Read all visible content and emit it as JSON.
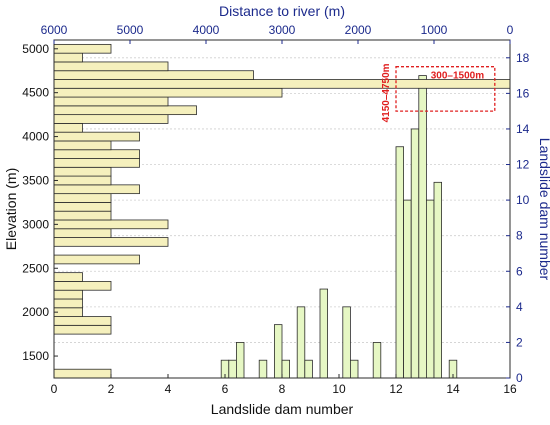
{
  "chart_data": {
    "type": "bar",
    "xlabel_bottom": "Landslide dam number",
    "xlabel_top": "Distance to river (m)",
    "ylabel_left": "Elevation (m)",
    "ylabel_right": "Landslide dam number",
    "x_bottom_range": [
      0,
      16
    ],
    "x_bottom_ticks": [
      "0",
      "2",
      "4",
      "6",
      "8",
      "10",
      "12",
      "14",
      "16"
    ],
    "x_top_range": [
      6000,
      0
    ],
    "x_top_ticks": [
      "6000",
      "5000",
      "4000",
      "3000",
      "2000",
      "1000",
      "0"
    ],
    "y_left_range": [
      1250,
      5100
    ],
    "y_left_ticks": [
      "1500",
      "2000",
      "2500",
      "3000",
      "3500",
      "4000",
      "4500",
      "5000"
    ],
    "y_right_range": [
      0,
      19
    ],
    "y_right_ticks": [
      "0",
      "2",
      "4",
      "6",
      "8",
      "10",
      "12",
      "14",
      "16",
      "18"
    ],
    "colors": {
      "bar_fill": "#f5f0bd",
      "bar_stroke": "#2b2b2b",
      "axis_right": "#1c2a8c",
      "axis_top": "#1c2a8c",
      "highlight": "#e02020",
      "grid": "#cfcfcf"
    },
    "grid": true,
    "elevation_series": {
      "bin_width_m": 100,
      "bins": [
        {
          "elevation": 1300,
          "count": 2
        },
        {
          "elevation": 1800,
          "count": 2
        },
        {
          "elevation": 1900,
          "count": 2
        },
        {
          "elevation": 2000,
          "count": 1
        },
        {
          "elevation": 2100,
          "count": 1
        },
        {
          "elevation": 2200,
          "count": 1
        },
        {
          "elevation": 2300,
          "count": 2
        },
        {
          "elevation": 2400,
          "count": 1
        },
        {
          "elevation": 2600,
          "count": 3
        },
        {
          "elevation": 2800,
          "count": 4
        },
        {
          "elevation": 2900,
          "count": 2
        },
        {
          "elevation": 3000,
          "count": 4
        },
        {
          "elevation": 3100,
          "count": 2
        },
        {
          "elevation": 3200,
          "count": 2
        },
        {
          "elevation": 3300,
          "count": 2
        },
        {
          "elevation": 3400,
          "count": 3
        },
        {
          "elevation": 3500,
          "count": 2
        },
        {
          "elevation": 3600,
          "count": 2
        },
        {
          "elevation": 3700,
          "count": 3
        },
        {
          "elevation": 3800,
          "count": 3
        },
        {
          "elevation": 3900,
          "count": 2
        },
        {
          "elevation": 4000,
          "count": 3
        },
        {
          "elevation": 4100,
          "count": 1
        },
        {
          "elevation": 4200,
          "count": 4
        },
        {
          "elevation": 4300,
          "count": 5
        },
        {
          "elevation": 4400,
          "count": 4
        },
        {
          "elevation": 4500,
          "count": 8
        },
        {
          "elevation": 4600,
          "count": 16
        },
        {
          "elevation": 4700,
          "count": 7
        },
        {
          "elevation": 4800,
          "count": 4
        },
        {
          "elevation": 4900,
          "count": 1
        },
        {
          "elevation": 5000,
          "count": 2
        }
      ]
    },
    "distance_series": {
      "bin_width_m": 100,
      "bins": [
        {
          "distance": 3800,
          "count": 1
        },
        {
          "distance": 3700,
          "count": 1
        },
        {
          "distance": 3600,
          "count": 2
        },
        {
          "distance": 3300,
          "count": 1
        },
        {
          "distance": 3100,
          "count": 3
        },
        {
          "distance": 3000,
          "count": 1
        },
        {
          "distance": 2800,
          "count": 4
        },
        {
          "distance": 2700,
          "count": 1
        },
        {
          "distance": 2500,
          "count": 5
        },
        {
          "distance": 2200,
          "count": 4
        },
        {
          "distance": 2100,
          "count": 1
        },
        {
          "distance": 1800,
          "count": 2
        },
        {
          "distance": 1500,
          "count": 13
        },
        {
          "distance": 1400,
          "count": 10
        },
        {
          "distance": 1300,
          "count": 14
        },
        {
          "distance": 1200,
          "count": 17
        },
        {
          "distance": 1100,
          "count": 10
        },
        {
          "distance": 1000,
          "count": 11
        },
        {
          "distance": 800,
          "count": 1
        }
      ]
    },
    "annotations": [
      {
        "text": "300–1500m",
        "orientation": "horizontal"
      },
      {
        "text": "4150–4750m",
        "orientation": "vertical"
      }
    ],
    "highlight_box": {
      "distance_range": [
        1500,
        200
      ],
      "dam_range": [
        15,
        17.5
      ]
    }
  }
}
